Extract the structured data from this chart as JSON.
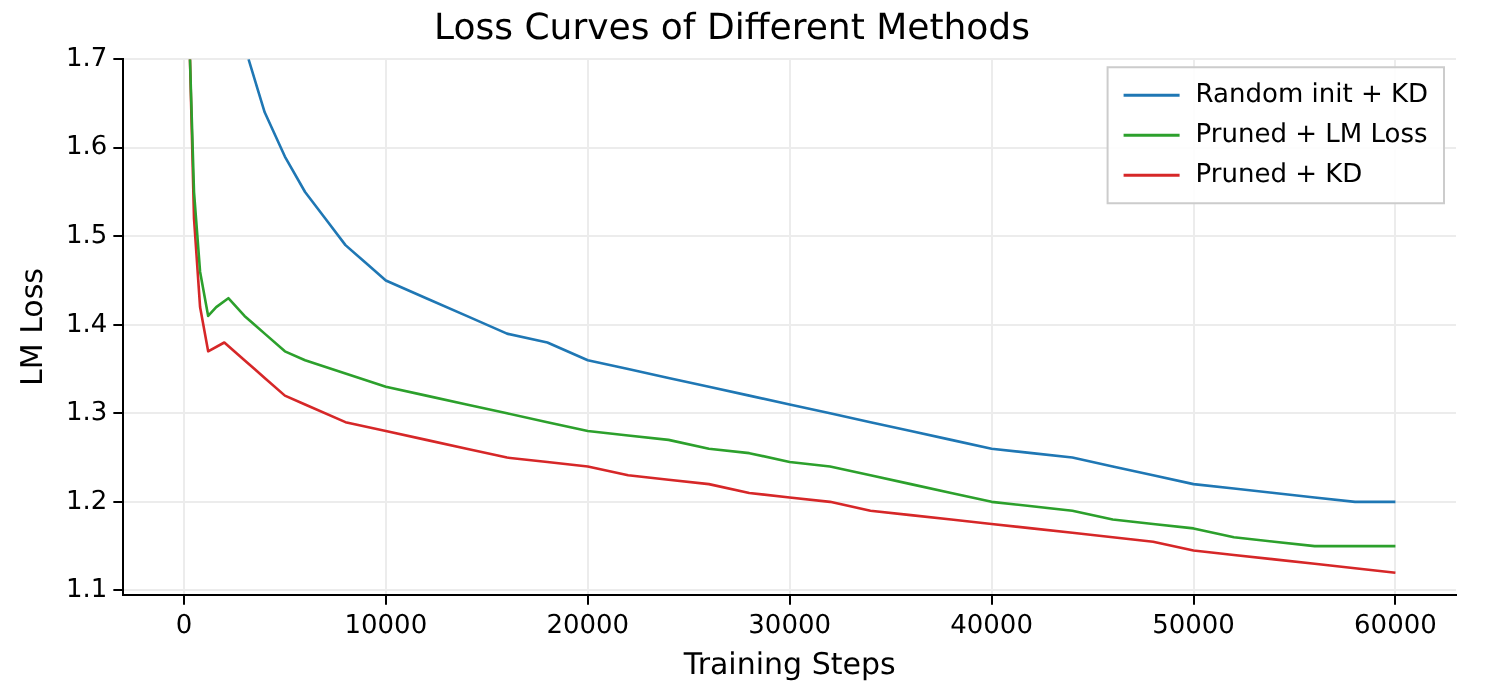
{
  "chart_data": {
    "type": "line",
    "title": "Loss Curves of Different Methods",
    "xlabel": "Training Steps",
    "ylabel": "LM Loss",
    "xlim": [
      -3000,
      63000
    ],
    "xticks": [
      0,
      10000,
      20000,
      30000,
      40000,
      50000,
      60000
    ],
    "ylim": [
      1.095,
      1.7
    ],
    "yticks": [
      1.1,
      1.2,
      1.3,
      1.4,
      1.5,
      1.6,
      1.7
    ],
    "grid": true,
    "legend": "top right",
    "marker": "none",
    "line_style": "solid",
    "series": [
      {
        "name": "Random init + KD",
        "color": "#1f77b4",
        "x": [
          3200,
          4000,
          5000,
          6000,
          7000,
          8000,
          9000,
          10000,
          12000,
          14000,
          16000,
          18000,
          20000,
          22000,
          24000,
          26000,
          28000,
          30000,
          32000,
          34000,
          36000,
          38000,
          40000,
          42000,
          44000,
          46000,
          48000,
          50000,
          52000,
          54000,
          56000,
          58000,
          60000
        ],
        "values": [
          1.7,
          1.64,
          1.59,
          1.55,
          1.52,
          1.49,
          1.47,
          1.45,
          1.43,
          1.41,
          1.39,
          1.38,
          1.36,
          1.35,
          1.34,
          1.33,
          1.32,
          1.31,
          1.3,
          1.29,
          1.28,
          1.27,
          1.26,
          1.255,
          1.25,
          1.24,
          1.23,
          1.22,
          1.215,
          1.21,
          1.205,
          1.2,
          1.2
        ]
      },
      {
        "name": "Pruned + LM Loss",
        "color": "#2ca02c",
        "x": [
          300,
          500,
          800,
          1200,
          1600,
          2200,
          3000,
          4000,
          5000,
          6000,
          8000,
          10000,
          12000,
          14000,
          16000,
          18000,
          20000,
          22000,
          24000,
          26000,
          28000,
          30000,
          32000,
          34000,
          36000,
          38000,
          40000,
          42000,
          44000,
          46000,
          48000,
          50000,
          52000,
          54000,
          56000,
          58000,
          60000
        ],
        "values": [
          1.7,
          1.55,
          1.46,
          1.41,
          1.42,
          1.43,
          1.41,
          1.39,
          1.37,
          1.36,
          1.345,
          1.33,
          1.32,
          1.31,
          1.3,
          1.29,
          1.28,
          1.275,
          1.27,
          1.26,
          1.255,
          1.245,
          1.24,
          1.23,
          1.22,
          1.21,
          1.2,
          1.195,
          1.19,
          1.18,
          1.175,
          1.17,
          1.16,
          1.155,
          1.15,
          1.15,
          1.15
        ]
      },
      {
        "name": "Pruned + KD",
        "color": "#d62728",
        "x": [
          300,
          500,
          800,
          1200,
          2000,
          3000,
          4000,
          5000,
          6000,
          8000,
          10000,
          12000,
          14000,
          16000,
          18000,
          20000,
          22000,
          24000,
          26000,
          28000,
          30000,
          32000,
          34000,
          36000,
          38000,
          40000,
          42000,
          44000,
          46000,
          48000,
          50000,
          52000,
          54000,
          56000,
          58000,
          60000
        ],
        "values": [
          1.7,
          1.52,
          1.42,
          1.37,
          1.38,
          1.36,
          1.34,
          1.32,
          1.31,
          1.29,
          1.28,
          1.27,
          1.26,
          1.25,
          1.245,
          1.24,
          1.23,
          1.225,
          1.22,
          1.21,
          1.205,
          1.2,
          1.19,
          1.185,
          1.18,
          1.175,
          1.17,
          1.165,
          1.16,
          1.155,
          1.145,
          1.14,
          1.135,
          1.13,
          1.125,
          1.12
        ]
      }
    ]
  }
}
